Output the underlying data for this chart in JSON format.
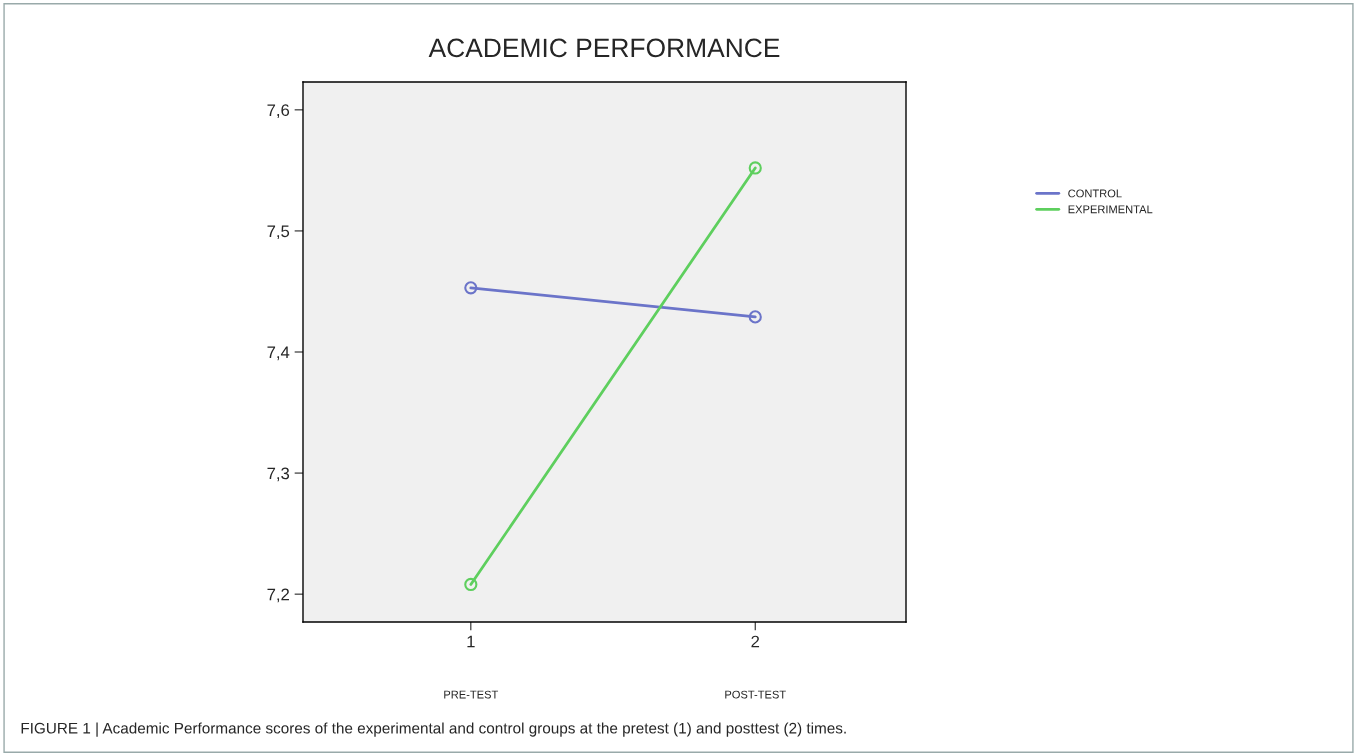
{
  "chart_data": {
    "type": "line",
    "title": "ACADEMIC PERFORMANCE",
    "x": [
      1,
      2
    ],
    "series": [
      {
        "name": "CONTROL",
        "color": "#6b74c9",
        "values": [
          7.453,
          7.429
        ]
      },
      {
        "name": "EXPERIMENTAL",
        "color": "#5ecf5e",
        "values": [
          7.208,
          7.552
        ]
      }
    ],
    "xlim": [
      0.41,
      2.53
    ],
    "xticks": [
      1,
      2
    ],
    "ylim": [
      7.177,
      7.623
    ],
    "yticks": [
      {
        "value": 7.2,
        "label": "7,2"
      },
      {
        "value": 7.3,
        "label": "7,3"
      },
      {
        "value": 7.4,
        "label": "7,4"
      },
      {
        "value": 7.5,
        "label": "7,5"
      },
      {
        "value": 7.6,
        "label": "7,6"
      }
    ],
    "marker": "circle",
    "grid": false,
    "legend": "right",
    "annotations": [
      "PRE-TEST",
      "POST-TEST",
      "FIGURE 1 | Academic Performance scores of the experimental and control groups at the pretest (1) and posttest (2) times."
    ]
  }
}
